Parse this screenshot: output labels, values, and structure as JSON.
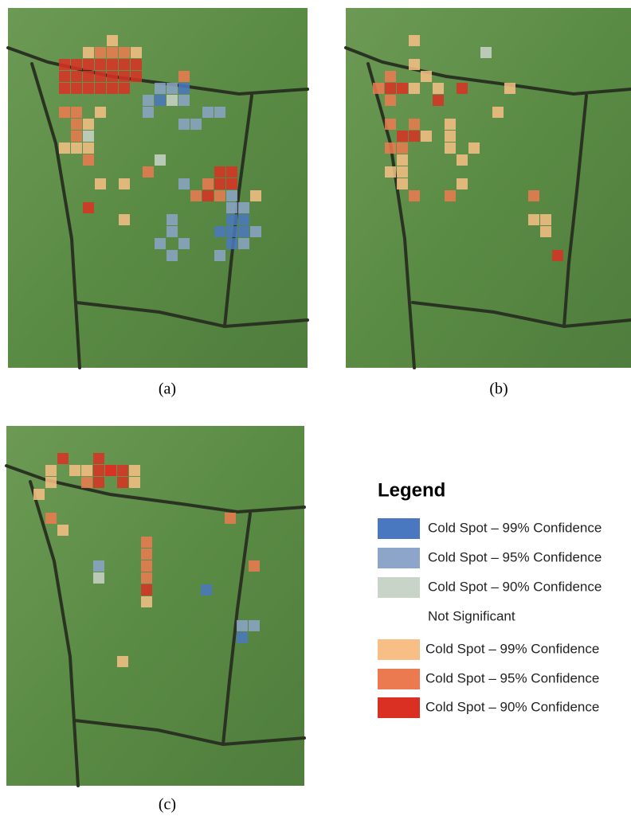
{
  "panels": [
    {
      "label": "(a)"
    },
    {
      "label": "(b)"
    },
    {
      "label": "(c)"
    }
  ],
  "legend": {
    "title": "Legend",
    "items": [
      {
        "label": "Cold Spot – 99% Confidence",
        "color": "#4a78c0"
      },
      {
        "label": "Cold Spot – 95% Confidence",
        "color": "#8ca5c8"
      },
      {
        "label": "Cold Spot – 90% Confidence",
        "color": "#c9d4c9"
      },
      {
        "label": "Not Significant"
      },
      {
        "label": "Cold Spot – 99% Confidence",
        "color": "#f7bf85"
      },
      {
        "label": "Cold Spot – 95% Confidence",
        "color": "#ec7a50"
      },
      {
        "label": "Cold Spot – 90% Confidence",
        "color": "#da3023"
      }
    ]
  }
}
